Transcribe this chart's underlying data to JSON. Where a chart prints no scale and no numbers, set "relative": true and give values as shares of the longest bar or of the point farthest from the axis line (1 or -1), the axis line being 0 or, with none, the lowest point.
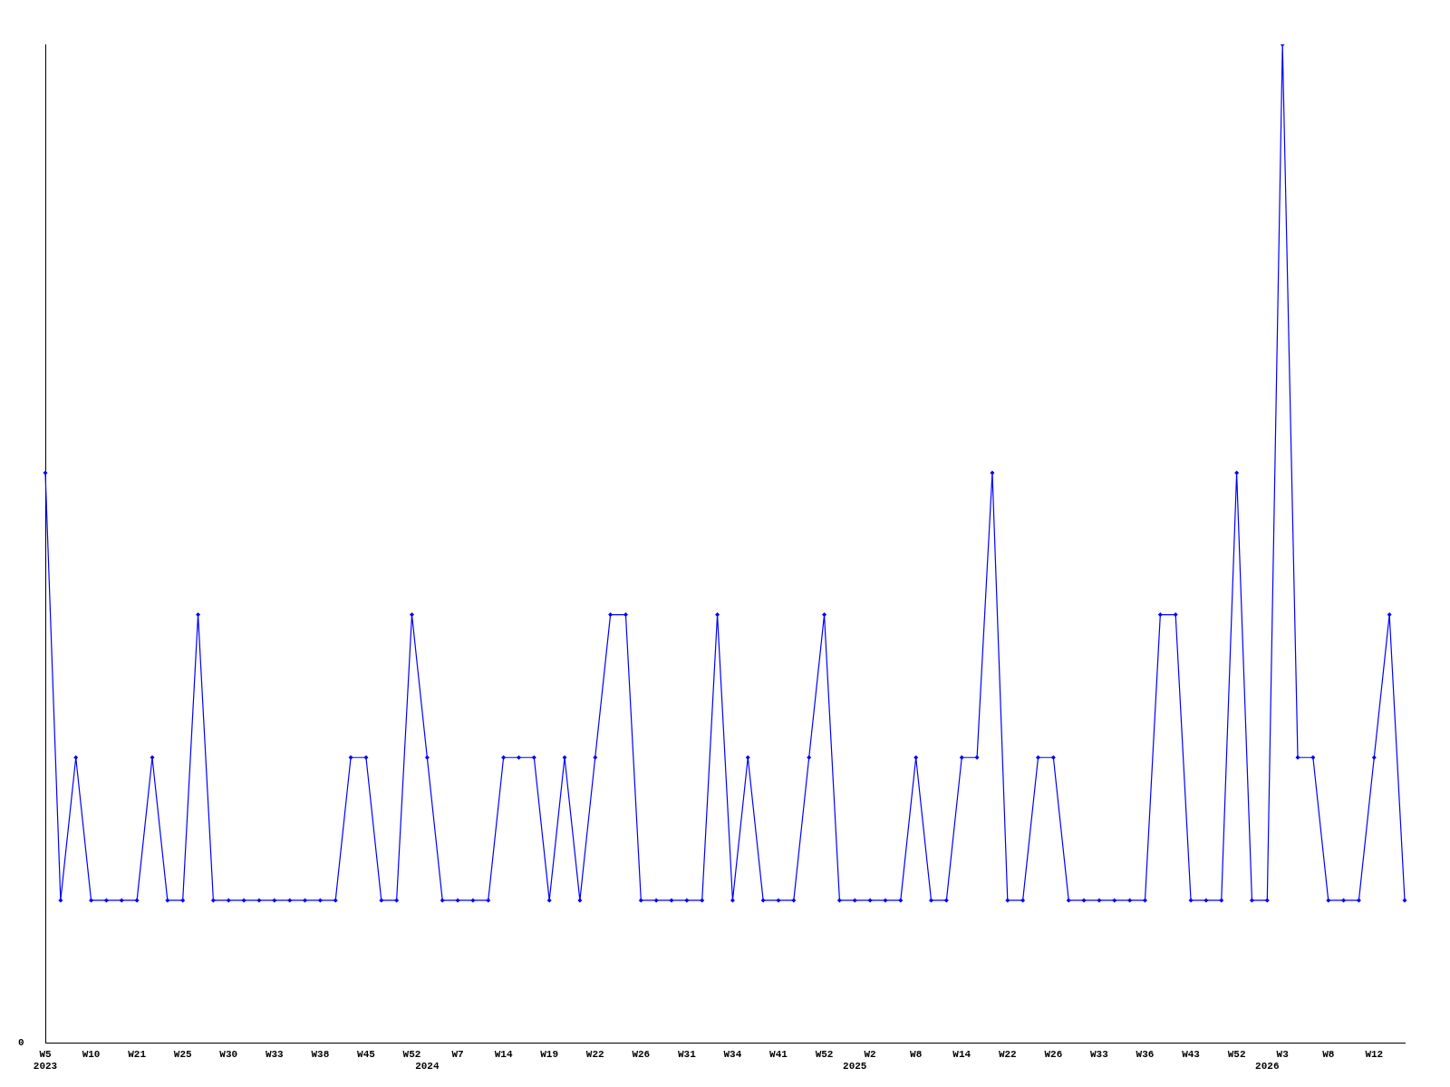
{
  "chart_data": {
    "type": "line",
    "relative": true,
    "marker": "diamond",
    "grid": false,
    "legend": false,
    "categories": [
      "W5\n2023",
      null,
      null,
      "W10",
      null,
      null,
      "W21",
      null,
      null,
      "W25",
      null,
      null,
      "W30",
      null,
      null,
      "W33",
      null,
      null,
      "W38",
      null,
      null,
      "W45",
      null,
      null,
      "W52",
      "\n2024",
      null,
      "W7",
      null,
      null,
      "W14",
      null,
      null,
      "W19",
      null,
      null,
      "W22",
      null,
      null,
      "W26",
      null,
      null,
      "W31",
      null,
      null,
      "W34",
      null,
      null,
      "W41",
      null,
      null,
      "W52",
      null,
      "\n2025",
      "W2",
      null,
      null,
      "W8",
      null,
      null,
      "W14",
      null,
      null,
      "W22",
      null,
      null,
      "W26",
      null,
      null,
      "W33",
      null,
      null,
      "W36",
      null,
      null,
      "W43",
      null,
      null,
      "W52",
      null,
      "\n2026",
      "W3",
      null,
      null,
      "W8",
      null,
      null,
      "W12",
      null,
      null
    ],
    "series": [
      {
        "color": "#0000ff",
        "values": [
          0.571,
          0.143,
          0.286,
          0.143,
          0.143,
          0.143,
          0.143,
          0.286,
          0.143,
          0.143,
          0.429,
          0.143,
          0.143,
          0.143,
          0.143,
          0.143,
          0.143,
          0.143,
          0.143,
          0.143,
          0.286,
          0.286,
          0.143,
          0.143,
          0.429,
          0.286,
          0.143,
          0.143,
          0.143,
          0.143,
          0.286,
          0.286,
          0.286,
          0.143,
          0.286,
          0.143,
          0.286,
          0.429,
          0.429,
          0.143,
          0.143,
          0.143,
          0.143,
          0.143,
          0.429,
          0.143,
          0.286,
          0.143,
          0.143,
          0.143,
          0.286,
          0.429,
          0.143,
          0.143,
          0.143,
          0.143,
          0.143,
          0.286,
          0.143,
          0.143,
          0.286,
          0.286,
          0.571,
          0.143,
          0.143,
          0.286,
          0.286,
          0.143,
          0.143,
          0.143,
          0.143,
          0.143,
          0.143,
          0.429,
          0.429,
          0.143,
          0.143,
          0.143,
          0.571,
          0.143,
          0.143,
          1,
          0.286,
          0.286,
          0.143,
          0.143,
          0.143,
          0.286,
          0.429,
          0.143
        ]
      }
    ],
    "annotations": [
      "0"
    ]
  }
}
